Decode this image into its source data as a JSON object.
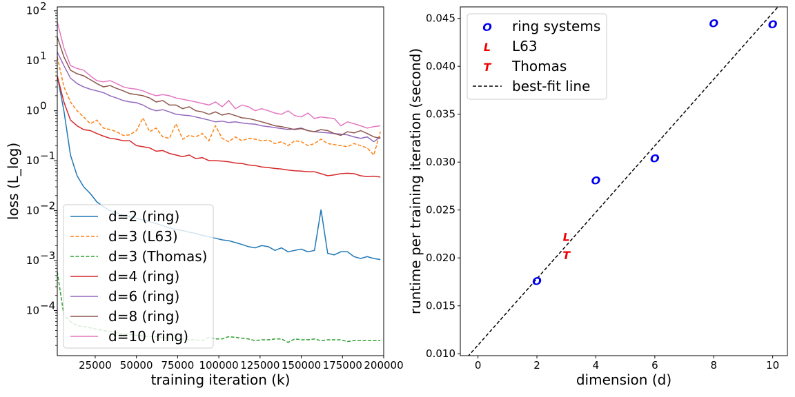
{
  "chart_data": [
    {
      "type": "line",
      "xlabel": "training iteration (k)",
      "ylabel": "loss (L_log)",
      "xscale": "linear",
      "yscale": "log",
      "xlim": [
        2000,
        200000
      ],
      "ylim": [
        1.25e-05,
        120
      ],
      "xticks": [
        25000,
        50000,
        75000,
        100000,
        125000,
        150000,
        175000,
        200000
      ],
      "yticks": [
        {
          "value": 0.0001,
          "base": "10",
          "exp": "−4"
        },
        {
          "value": 0.001,
          "base": "10",
          "exp": "−3"
        },
        {
          "value": 0.01,
          "base": "10",
          "exp": "−2"
        },
        {
          "value": 0.1,
          "base": "10",
          "exp": "−1"
        },
        {
          "value": 1,
          "base": "10",
          "exp": "0"
        },
        {
          "value": 10,
          "base": "10",
          "exp": "1"
        },
        {
          "value": 100,
          "base": "10",
          "exp": "2"
        }
      ],
      "grid": false,
      "legend_position": "lower-left",
      "x": [
        2000,
        6000,
        10000,
        14000,
        18000,
        22000,
        26000,
        30000,
        34000,
        38000,
        42000,
        46000,
        50000,
        54000,
        58000,
        62000,
        66000,
        70000,
        74000,
        78000,
        82000,
        86000,
        90000,
        94000,
        98000,
        102000,
        106000,
        110000,
        114000,
        118000,
        122000,
        126000,
        130000,
        134000,
        138000,
        142000,
        146000,
        150000,
        154000,
        158000,
        162000,
        166000,
        170000,
        174000,
        178000,
        182000,
        186000,
        190000,
        194000,
        198000
      ],
      "series": [
        {
          "name": "d=2 (ring)",
          "color": "#1f77b4",
          "dash": "solid",
          "values": [
            5.0,
            1.0,
            0.13,
            0.05,
            0.03,
            0.022,
            0.015,
            0.012,
            0.01,
            0.009,
            0.008,
            0.0075,
            0.007,
            0.0065,
            0.006,
            0.0055,
            0.005,
            0.0045,
            0.0042,
            0.004,
            0.0037,
            0.0035,
            0.0032,
            0.003,
            0.0028,
            0.0026,
            0.0025,
            0.0023,
            0.0021,
            0.0019,
            0.0018,
            0.002,
            0.0019,
            0.0016,
            0.0018,
            0.0015,
            0.0016,
            0.0017,
            0.0015,
            0.0016,
            0.0105,
            0.0014,
            0.0013,
            0.0015,
            0.0015,
            0.0012,
            0.0011,
            0.0012,
            0.0011,
            0.00105
          ]
        },
        {
          "name": "d=3 (L63)",
          "color": "#ff7f0e",
          "dash": "dashed",
          "values": [
            12.0,
            3.0,
            1.5,
            1.0,
            0.75,
            0.55,
            0.65,
            0.45,
            0.42,
            0.38,
            0.32,
            0.33,
            0.4,
            0.72,
            0.38,
            0.45,
            0.3,
            0.28,
            0.55,
            0.27,
            0.32,
            0.3,
            0.35,
            0.25,
            0.5,
            0.28,
            0.24,
            0.3,
            0.25,
            0.28,
            0.27,
            0.25,
            0.26,
            0.22,
            0.24,
            0.2,
            0.25,
            0.24,
            0.2,
            0.22,
            0.27,
            0.22,
            0.21,
            0.2,
            0.19,
            0.22,
            0.2,
            0.18,
            0.13,
            0.38
          ]
        },
        {
          "name": "d=3 (Thomas)",
          "color": "#2ca02c",
          "dash": "dashed",
          "values": [
            0.0006,
            8e-05,
            6e-05,
            5e-05,
            4.8e-05,
            4.5e-05,
            4.2e-05,
            4e-05,
            3.8e-05,
            3.6e-05,
            3.4e-05,
            3.3e-05,
            3.2e-05,
            3.1e-05,
            3e-05,
            3e-05,
            2.9e-05,
            2.8e-05,
            2.8e-05,
            2.7e-05,
            2.6e-05,
            2.6e-05,
            2.5e-05,
            2.9e-05,
            2.7e-05,
            2.7e-05,
            3e-05,
            2.9e-05,
            2.8e-05,
            2.7e-05,
            2.5e-05,
            2.6e-05,
            2.6e-05,
            2.7e-05,
            2.7e-05,
            2.3e-05,
            2.7e-05,
            2.6e-05,
            2.6e-05,
            2.7e-05,
            2.5e-05,
            2.6e-05,
            2.6e-05,
            2.6e-05,
            2.4e-05,
            2.5e-05,
            2.5e-05,
            2.5e-05,
            2.5e-05,
            2.5e-05
          ]
        },
        {
          "name": "d=4 (ring)",
          "color": "#d62728",
          "dash": "solid",
          "values": [
            5.0,
            1.5,
            0.65,
            0.5,
            0.42,
            0.4,
            0.35,
            0.31,
            0.28,
            0.27,
            0.25,
            0.25,
            0.2,
            0.19,
            0.18,
            0.155,
            0.16,
            0.14,
            0.13,
            0.12,
            0.13,
            0.11,
            0.115,
            0.1,
            0.1,
            0.098,
            0.095,
            0.09,
            0.088,
            0.082,
            0.08,
            0.075,
            0.073,
            0.07,
            0.068,
            0.065,
            0.063,
            0.062,
            0.06,
            0.06,
            0.055,
            0.05,
            0.052,
            0.055,
            0.056,
            0.055,
            0.05,
            0.048,
            0.049,
            0.047
          ]
        },
        {
          "name": "d=6 (ring)",
          "color": "#9467bd",
          "dash": "solid",
          "values": [
            15.0,
            8.0,
            4.5,
            3.5,
            3.0,
            2.7,
            2.5,
            2.3,
            2.0,
            1.8,
            1.6,
            1.5,
            1.45,
            1.3,
            1.1,
            1.0,
            1.05,
            0.95,
            0.85,
            0.82,
            0.8,
            0.75,
            0.7,
            0.65,
            0.6,
            0.62,
            0.58,
            0.6,
            0.57,
            0.55,
            0.54,
            0.5,
            0.48,
            0.46,
            0.44,
            0.42,
            0.43,
            0.45,
            0.4,
            0.38,
            0.37,
            0.36,
            0.35,
            0.34,
            0.33,
            0.3,
            0.28,
            0.3,
            0.24,
            0.3
          ]
        },
        {
          "name": "d=8 (ring)",
          "color": "#8c564b",
          "dash": "solid",
          "values": [
            30.0,
            12.0,
            6.5,
            5.5,
            5.0,
            4.2,
            3.5,
            3.0,
            3.2,
            2.8,
            2.5,
            2.2,
            2.1,
            2.0,
            1.8,
            1.5,
            1.6,
            1.3,
            1.3,
            1.1,
            1.2,
            1.0,
            0.95,
            0.85,
            0.95,
            0.82,
            0.88,
            0.8,
            0.72,
            0.7,
            0.65,
            0.6,
            0.55,
            0.5,
            0.48,
            0.45,
            0.42,
            0.44,
            0.4,
            0.38,
            0.42,
            0.4,
            0.35,
            0.32,
            0.38,
            0.36,
            0.4,
            0.35,
            0.3,
            0.28
          ]
        },
        {
          "name": "d=10 (ring)",
          "color": "#e377c2",
          "dash": "solid",
          "values": [
            60.0,
            18.0,
            8.0,
            7.0,
            6.5,
            5.0,
            4.0,
            3.8,
            4.0,
            3.5,
            3.0,
            2.8,
            2.7,
            2.5,
            2.2,
            2.0,
            2.1,
            2.0,
            1.8,
            1.7,
            1.6,
            1.5,
            1.4,
            1.3,
            1.5,
            1.2,
            1.6,
            1.1,
            1.3,
            1.2,
            1.0,
            1.1,
            1.0,
            0.9,
            0.85,
            1.0,
            0.8,
            0.75,
            0.9,
            0.7,
            0.75,
            0.72,
            0.7,
            0.5,
            0.6,
            0.55,
            0.5,
            0.45,
            0.48,
            0.5
          ]
        }
      ]
    },
    {
      "type": "scatter",
      "xlabel": "dimension (d)",
      "ylabel": "runtime per training iteration (second)",
      "xlim": [
        -0.6,
        10.5
      ],
      "ylim": [
        0.0098,
        0.0462
      ],
      "xticks": [
        0,
        2,
        4,
        6,
        8,
        10
      ],
      "yticks": [
        0.01,
        0.015,
        0.02,
        0.025,
        0.03,
        0.035,
        0.04,
        0.045
      ],
      "ytick_labels": [
        "0.010",
        "0.015",
        "0.020",
        "0.025",
        "0.030",
        "0.035",
        "0.040",
        "0.045"
      ],
      "grid": false,
      "legend_position": "top-left",
      "series": [
        {
          "name": "ring systems",
          "marker": "O",
          "color": "#0000ee",
          "points": [
            [
              2,
              0.0176
            ],
            [
              4,
              0.0281
            ],
            [
              6,
              0.0304
            ],
            [
              8,
              0.0445
            ],
            [
              10,
              0.0444
            ]
          ]
        },
        {
          "name": "L63",
          "marker": "L",
          "color": "#ee0000",
          "points": [
            [
              3,
              0.0222
            ]
          ]
        },
        {
          "name": "Thomas",
          "marker": "T",
          "color": "#ee0000",
          "points": [
            [
              3,
              0.0203
            ]
          ]
        }
      ],
      "fit_line": {
        "name": "best-fit line",
        "color": "#000000",
        "dash": "dashed",
        "slope": 0.003468,
        "intercept": 0.0109
      }
    }
  ]
}
